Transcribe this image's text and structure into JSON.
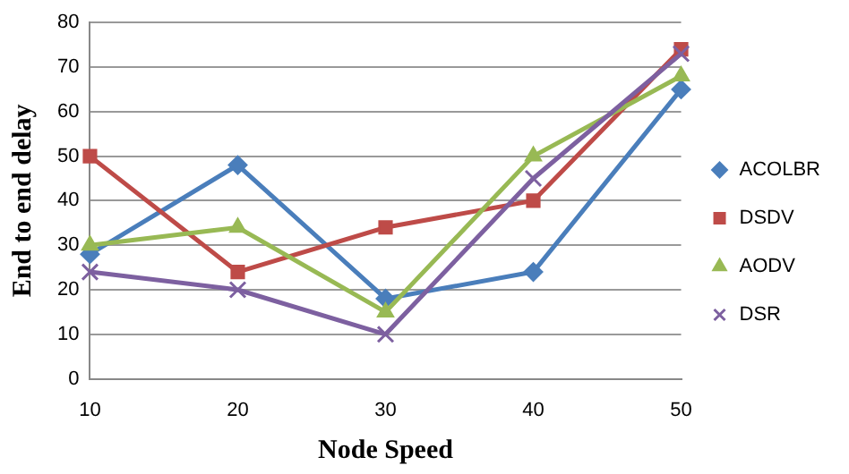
{
  "chart_data": {
    "type": "line",
    "xlabel": "Node Speed",
    "ylabel": "End to end delay",
    "categories": [
      "10",
      "20",
      "30",
      "40",
      "50"
    ],
    "series": [
      {
        "name": "ACOLBR",
        "color": "#4a7ebb",
        "marker": "diamond",
        "values": [
          28,
          48,
          18,
          24,
          65
        ]
      },
      {
        "name": "DSDV",
        "color": "#be4b48",
        "marker": "square",
        "values": [
          50,
          24,
          34,
          40,
          74
        ]
      },
      {
        "name": "AODV",
        "color": "#98b954",
        "marker": "triangle",
        "values": [
          30,
          34,
          15,
          50,
          68
        ]
      },
      {
        "name": "DSR",
        "color": "#7d60a0",
        "marker": "cross",
        "values": [
          24,
          20,
          10,
          45,
          73
        ]
      }
    ],
    "ylim": [
      0,
      80
    ],
    "yticks": [
      0,
      10,
      20,
      30,
      40,
      50,
      60,
      70,
      80
    ],
    "grid": "y",
    "legend": "right",
    "line_style": "solid"
  }
}
